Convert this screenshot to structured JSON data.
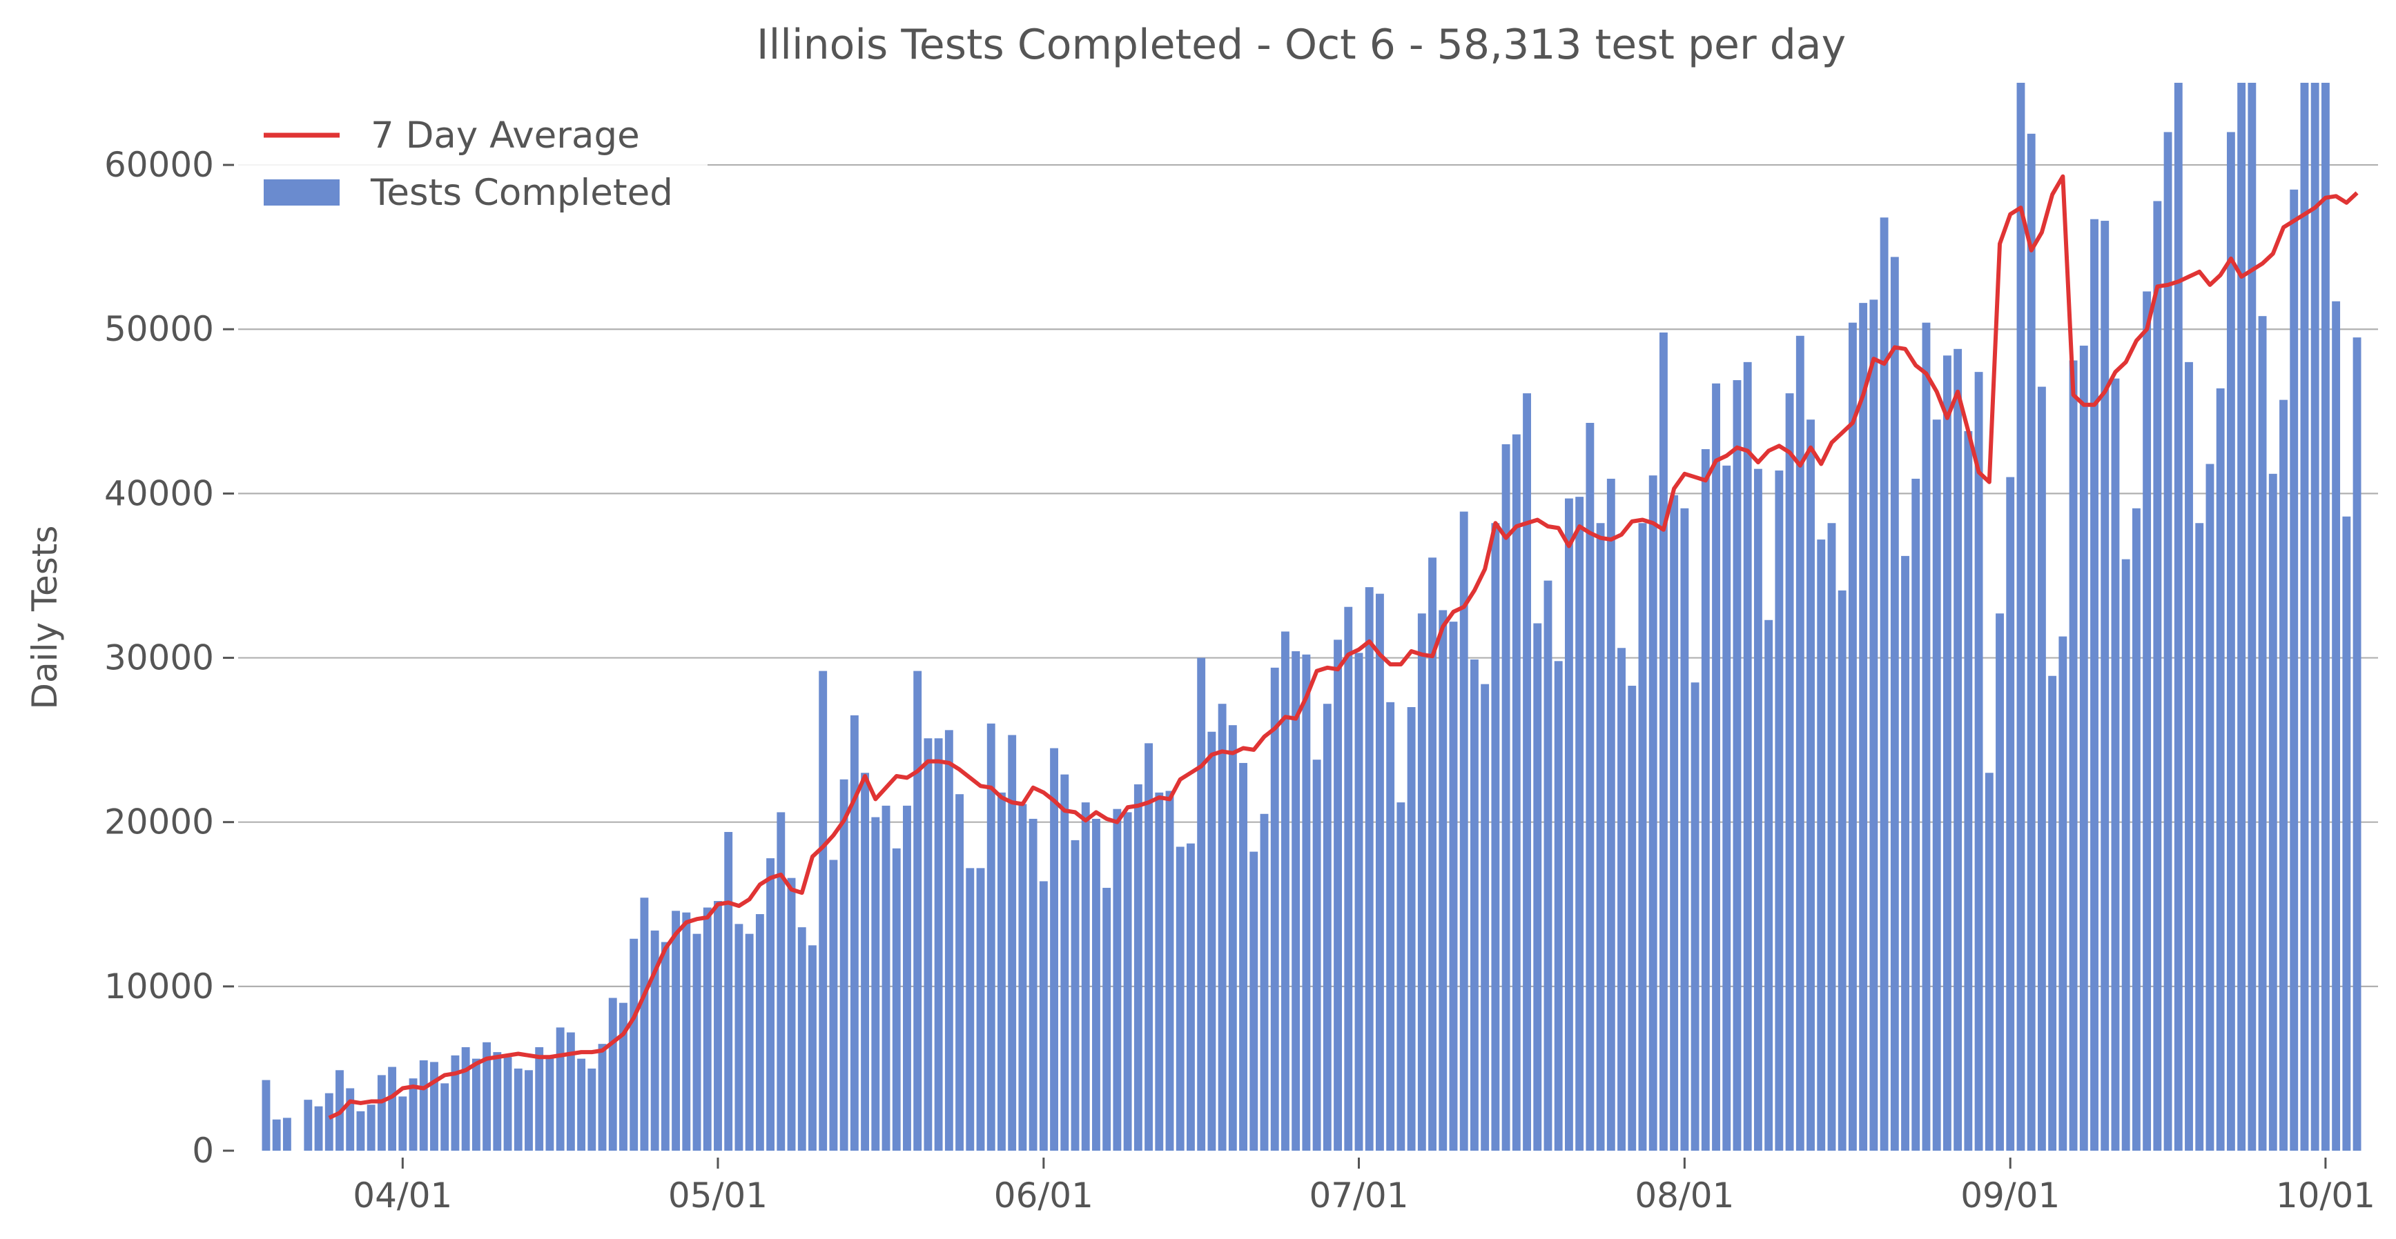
{
  "chart_data": {
    "type": "bar",
    "title": "Illinois Tests Completed - Oct 6 - 58,313 test per day",
    "xlabel": "",
    "ylabel": "Daily Tests",
    "ylim": [
      0,
      65000
    ],
    "yticks": [
      0,
      10000,
      20000,
      30000,
      40000,
      50000,
      60000
    ],
    "ytick_labels": [
      "0",
      "10000",
      "20000",
      "30000",
      "40000",
      "50000",
      "60000"
    ],
    "xticks": [
      {
        "date": "2020-04-01",
        "label": "04/01"
      },
      {
        "date": "2020-05-01",
        "label": "05/01"
      },
      {
        "date": "2020-06-01",
        "label": "06/01"
      },
      {
        "date": "2020-07-01",
        "label": "07/01"
      },
      {
        "date": "2020-08-01",
        "label": "08/01"
      },
      {
        "date": "2020-09-01",
        "label": "09/01"
      },
      {
        "date": "2020-10-01",
        "label": "10/01"
      }
    ],
    "x_range": [
      "2020-03-17",
      "2020-10-06"
    ],
    "grid": "horizontal",
    "legend": "top-left",
    "colors": {
      "bars": "#6a8bcf",
      "average_line": "#e03434"
    },
    "series": [
      {
        "name": "Tests Completed",
        "type": "bar",
        "start_date": "2020-03-19",
        "values": [
          4300,
          1900,
          2000,
          0,
          3100,
          2700,
          3500,
          4900,
          3800,
          2400,
          2800,
          4600,
          5100,
          3300,
          4400,
          5500,
          5400,
          4100,
          5800,
          6300,
          5600,
          6600,
          6000,
          5700,
          5000,
          4900,
          6300,
          5700,
          7500,
          7200,
          5600,
          5000,
          6500,
          9300,
          9000,
          12900,
          15400,
          13400,
          12700,
          14600,
          14500,
          13200,
          14800,
          15200,
          19400,
          13800,
          13200,
          14400,
          17800,
          20600,
          16600,
          13600,
          12500,
          29200,
          17700,
          22600,
          26500,
          23000,
          20300,
          21000,
          18400,
          21000,
          29200,
          25100,
          25100,
          25600,
          21700,
          17200,
          17200,
          26000,
          21800,
          25300,
          21100,
          20200,
          16400,
          24500,
          22900,
          18900,
          21200,
          20200,
          16000,
          20800,
          20600,
          22300,
          24800,
          21800,
          21900,
          18500,
          18700,
          30000,
          25500,
          27200,
          25900,
          23600,
          18200,
          20500,
          29400,
          31600,
          30400,
          30200,
          23800,
          27200,
          31100,
          33100,
          30300,
          34300,
          33900,
          27300,
          21200,
          27000,
          32700,
          36100,
          32900,
          32200,
          38900,
          29900,
          28400,
          38200,
          43000,
          43600,
          46100,
          32100,
          34700,
          29800,
          39700,
          39800,
          44300,
          38200,
          40900,
          30600,
          28300,
          38200,
          41100,
          49800,
          39900,
          39100,
          28500,
          42700,
          46700,
          41700,
          46900,
          48000,
          41500,
          32300,
          41400,
          46100,
          49600,
          44500,
          37200,
          38200,
          34100,
          50400,
          51600,
          51800,
          56800,
          54400,
          36200,
          40900,
          50400,
          44500,
          48400,
          48800,
          43800,
          47400,
          23000,
          32700,
          41000,
          65000,
          61900,
          46500,
          28900,
          31300,
          48100,
          49000,
          56700,
          56600,
          47000,
          36000,
          39100,
          52300,
          57800,
          62000,
          65000,
          48000,
          38200,
          41800,
          46400,
          62000,
          65000,
          65000,
          50800,
          41200,
          45700,
          58500,
          65000,
          65000,
          65000,
          51700,
          38600,
          49500
        ]
      },
      {
        "name": "7 Day Average",
        "type": "line",
        "start_date": "2020-03-25",
        "values": [
          2000,
          2300,
          3000,
          2900,
          3000,
          3000,
          3300,
          3800,
          3900,
          3800,
          4200,
          4600,
          4700,
          4900,
          5300,
          5600,
          5700,
          5800,
          5900,
          5800,
          5700,
          5700,
          5800,
          5900,
          6000,
          6000,
          6100,
          6600,
          7100,
          8100,
          9500,
          10900,
          12300,
          13200,
          13900,
          14100,
          14200,
          15000,
          15100,
          14900,
          15300,
          16200,
          16600,
          16800,
          15900,
          15700,
          17900,
          18500,
          19200,
          20100,
          21400,
          22800,
          21400,
          22100,
          22800,
          22700,
          23100,
          23700,
          23700,
          23600,
          23200,
          22700,
          22200,
          22100,
          21500,
          21200,
          21100,
          22100,
          21800,
          21300,
          20700,
          20600,
          20100,
          20600,
          20200,
          20000,
          20900,
          21000,
          21200,
          21500,
          21400,
          22600,
          23000,
          23400,
          24100,
          24300,
          24200,
          24500,
          24400,
          25200,
          25700,
          26400,
          26300,
          27600,
          29200,
          29400,
          29300,
          30200,
          30500,
          31000,
          30200,
          29600,
          29600,
          30400,
          30200,
          30100,
          31900,
          32800,
          33100,
          34100,
          35400,
          38200,
          37300,
          38000,
          38200,
          38400,
          38000,
          37900,
          36800,
          38000,
          37600,
          37300,
          37200,
          37500,
          38300,
          38400,
          38200,
          37800,
          40300,
          41200,
          41000,
          40800,
          42000,
          42300,
          42800,
          42600,
          41900,
          42600,
          42900,
          42500,
          41700,
          42800,
          41800,
          43100,
          43700,
          44300,
          46000,
          48200,
          47900,
          48900,
          48800,
          47800,
          47300,
          46200,
          44600,
          46200,
          43800,
          41300,
          40700,
          55200,
          57000,
          57400,
          54800,
          55900,
          58200,
          59300,
          46000,
          45400,
          45400,
          46200,
          47400,
          48000,
          49300,
          50000,
          52600,
          52700,
          52900,
          53200,
          53500,
          52700,
          53300,
          54300,
          53200,
          53600,
          54000,
          54600,
          56200,
          56600,
          57000,
          57400,
          58000,
          58100,
          57700,
          58300
        ]
      }
    ]
  }
}
